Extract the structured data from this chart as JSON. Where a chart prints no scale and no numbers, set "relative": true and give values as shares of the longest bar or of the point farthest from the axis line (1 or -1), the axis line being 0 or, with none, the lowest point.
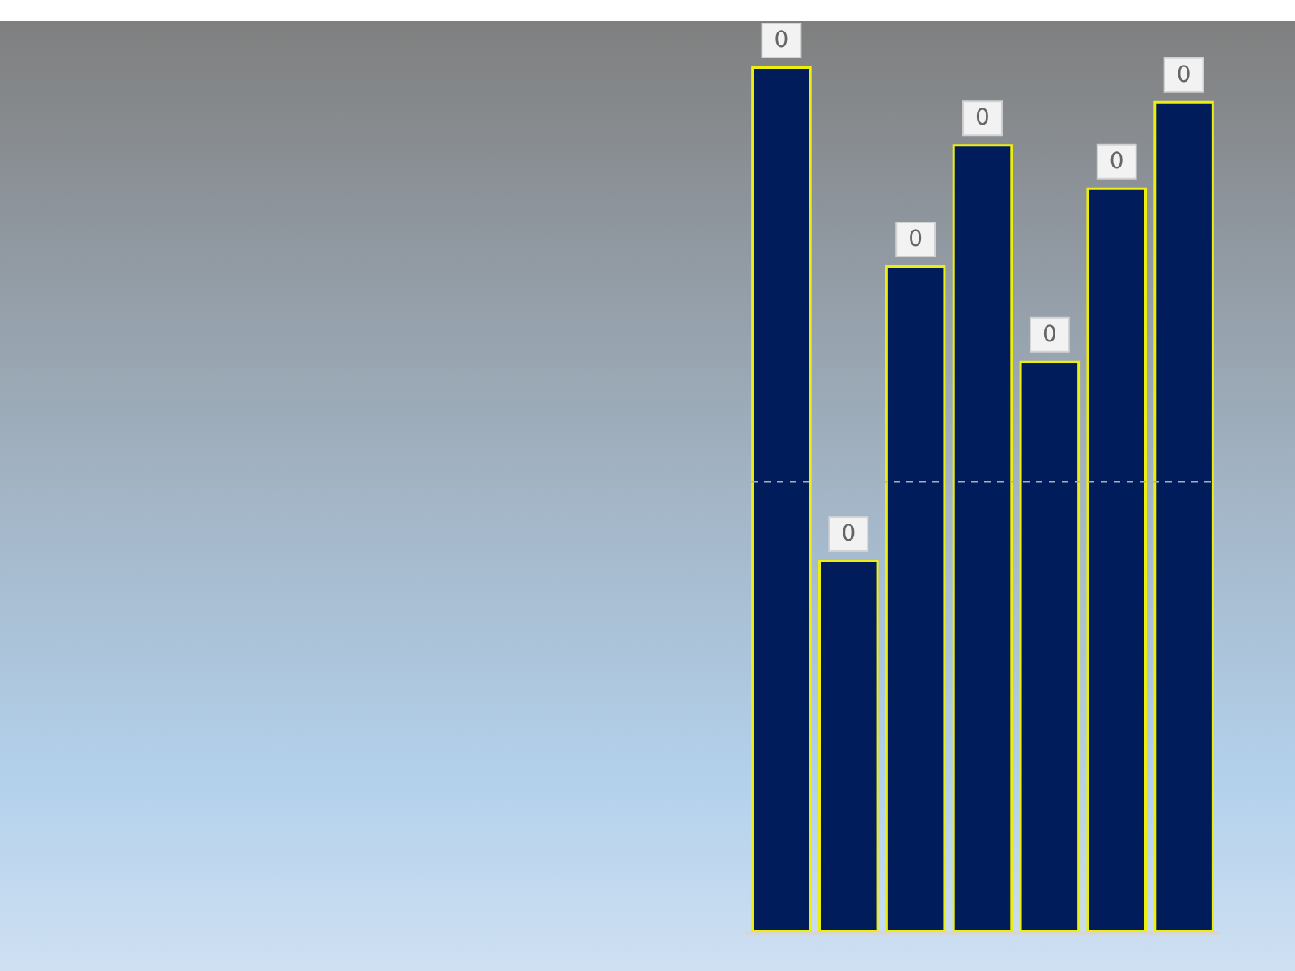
{
  "chart_data": {
    "type": "bar",
    "relative": true,
    "categories": [
      null,
      null,
      null,
      null,
      null,
      null,
      null
    ],
    "values": [
      1,
      0.43,
      0.77,
      0.91,
      0.66,
      0.86,
      0.96
    ],
    "color": "#001c5a",
    "annotations": [
      "0",
      "0",
      "0",
      "0",
      "0",
      "0",
      "0"
    ],
    "ref_lines": [
      {
        "axis": "y",
        "value": 0.52,
        "color": "#b0b0b0",
        "line_style": "dashed"
      }
    ]
  }
}
